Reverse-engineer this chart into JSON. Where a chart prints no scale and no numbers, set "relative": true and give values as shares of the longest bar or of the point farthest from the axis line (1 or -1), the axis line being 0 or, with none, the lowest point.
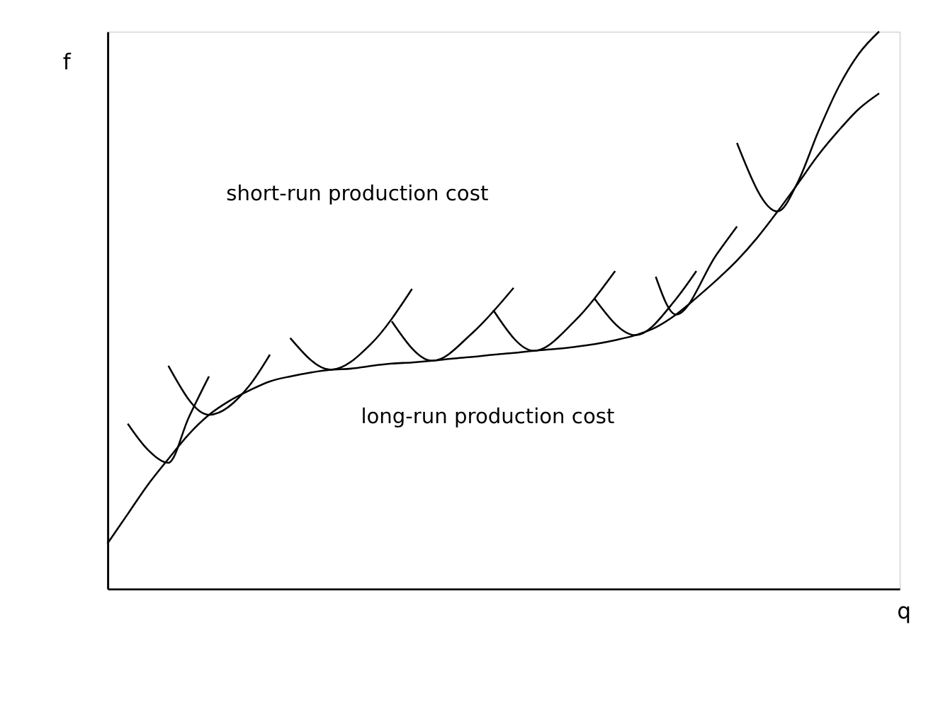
{
  "chart_data": {
    "type": "line",
    "relative": true,
    "xlabel": "q",
    "ylabel": "f",
    "grid": false,
    "marker": "none",
    "line_style": "solid",
    "tick_labels": false,
    "categories": [
      null,
      null,
      null,
      null,
      null,
      null,
      null,
      null,
      null,
      null,
      null,
      null,
      null,
      null,
      null,
      null,
      null,
      null,
      null,
      null,
      null,
      null,
      null,
      null,
      null,
      null,
      null,
      null,
      null,
      null,
      null,
      null,
      null,
      null,
      null,
      null,
      null,
      null,
      null,
      null
    ],
    "annotations": [
      "short-run production cost",
      "long-run production cost"
    ],
    "series": [
      {
        "color": "#000000",
        "values": [
          0.081,
          0.134,
          0.187,
          0.233,
          0.277,
          0.312,
          0.337,
          0.356,
          0.372,
          0.381,
          0.388,
          0.393,
          0.395,
          0.4,
          0.404,
          0.406,
          0.409,
          0.413,
          0.416,
          0.42,
          0.423,
          0.427,
          0.43,
          0.434,
          0.439,
          0.446,
          0.455,
          0.469,
          0.492,
          0.522,
          0.554,
          0.589,
          0.63,
          0.677,
          0.727,
          0.778,
          0.822,
          0.861,
          0.889,
          null
        ]
      },
      {
        "color": "#000000",
        "values": [
          null,
          0.296,
          0.249,
          0.226,
          0.307,
          0.381,
          null,
          null,
          null,
          null,
          null,
          null,
          null,
          null,
          null,
          null,
          null,
          null,
          null,
          null,
          null,
          null,
          null,
          null,
          null,
          null,
          null,
          null,
          null,
          null,
          null,
          null,
          null,
          null,
          null,
          null,
          null,
          null,
          null,
          null
        ]
      },
      {
        "color": "#000000",
        "values": [
          null,
          null,
          null,
          0.4,
          null,
          0.312,
          null,
          0.365,
          0.42,
          null,
          null,
          null,
          null,
          null,
          null,
          null,
          null,
          null,
          null,
          null,
          null,
          null,
          null,
          null,
          null,
          null,
          null,
          null,
          null,
          null,
          null,
          null,
          null,
          null,
          null,
          null,
          null,
          null,
          null,
          null
        ]
      },
      {
        "color": "#000000",
        "values": [
          null,
          null,
          null,
          null,
          null,
          null,
          null,
          null,
          null,
          0.45,
          null,
          0.393,
          null,
          0.44,
          null,
          0.538,
          null,
          null,
          null,
          null,
          null,
          null,
          null,
          null,
          null,
          null,
          null,
          null,
          null,
          null,
          null,
          null,
          null,
          null,
          null,
          null,
          null,
          null,
          null,
          null
        ]
      },
      {
        "color": "#000000",
        "values": [
          null,
          null,
          null,
          null,
          null,
          null,
          null,
          null,
          null,
          null,
          null,
          null,
          null,
          null,
          0.48,
          null,
          0.409,
          null,
          0.46,
          null,
          0.54,
          null,
          null,
          null,
          null,
          null,
          null,
          null,
          null,
          null,
          null,
          null,
          null,
          null,
          null,
          null,
          null,
          null,
          null,
          null
        ]
      },
      {
        "color": "#000000",
        "values": [
          null,
          null,
          null,
          null,
          null,
          null,
          null,
          null,
          null,
          null,
          null,
          null,
          null,
          null,
          null,
          null,
          null,
          null,
          null,
          0.5,
          null,
          0.427,
          null,
          0.48,
          null,
          0.57,
          null,
          null,
          null,
          null,
          null,
          null,
          null,
          null,
          null,
          null,
          null,
          null,
          null,
          null
        ]
      },
      {
        "color": "#000000",
        "values": [
          null,
          null,
          null,
          null,
          null,
          null,
          null,
          null,
          null,
          null,
          null,
          null,
          null,
          null,
          null,
          null,
          null,
          null,
          null,
          null,
          null,
          null,
          null,
          null,
          0.52,
          null,
          0.455,
          null,
          0.52,
          0.57,
          null,
          null,
          null,
          null,
          null,
          null,
          null,
          null,
          null,
          null
        ]
      },
      {
        "color": "#000000",
        "values": [
          null,
          null,
          null,
          null,
          null,
          null,
          null,
          null,
          null,
          null,
          null,
          null,
          null,
          null,
          null,
          null,
          null,
          null,
          null,
          null,
          null,
          null,
          null,
          null,
          null,
          null,
          null,
          0.56,
          0.492,
          null,
          0.6,
          0.65,
          null,
          null,
          null,
          null,
          null,
          null,
          null,
          null
        ]
      },
      {
        "color": "#000000",
        "values": [
          null,
          null,
          null,
          null,
          null,
          null,
          null,
          null,
          null,
          null,
          null,
          null,
          null,
          null,
          null,
          null,
          null,
          null,
          null,
          null,
          null,
          null,
          null,
          null,
          null,
          null,
          null,
          null,
          null,
          null,
          null,
          0.8,
          null,
          0.677,
          0.73,
          0.82,
          0.9,
          0.96,
          1.0,
          null
        ]
      }
    ]
  }
}
